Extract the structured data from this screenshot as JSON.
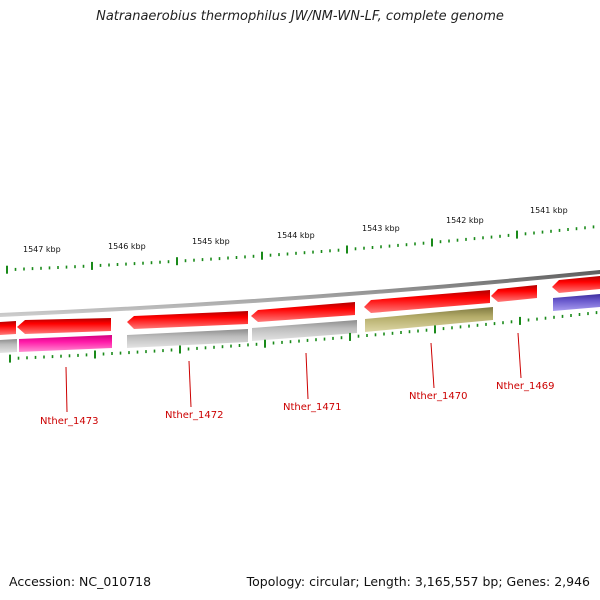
{
  "title": "Natranaerobius thermophilus JW/NM-WN-LF, complete genome",
  "accession_text": "Accession: NC_010718",
  "genome_info_text": "Topology: circular; Length: 3,165,557 bp; Genes: 2,946",
  "colors": {
    "backbone": "#8a8a8a",
    "cds": "#ff0000",
    "cds_highlight": "#ff6b6b",
    "tick": "#1a8a1a",
    "label": "#cc0000",
    "gray_feature": "#b8b8b8",
    "magenta_feature": "#ff1aa8",
    "olive_feature": "#b5ad6a",
    "purple_feature": "#6a5acd"
  },
  "kbp_labels": [
    "1547 kbp",
    "1546 kbp",
    "1545 kbp",
    "1544 kbp",
    "1543 kbp",
    "1542 kbp",
    "1541 kbp"
  ],
  "gene_labels": [
    "Nther_1473",
    "Nther_1472",
    "Nther_1471",
    "Nther_1470",
    "Nther_1469"
  ]
}
